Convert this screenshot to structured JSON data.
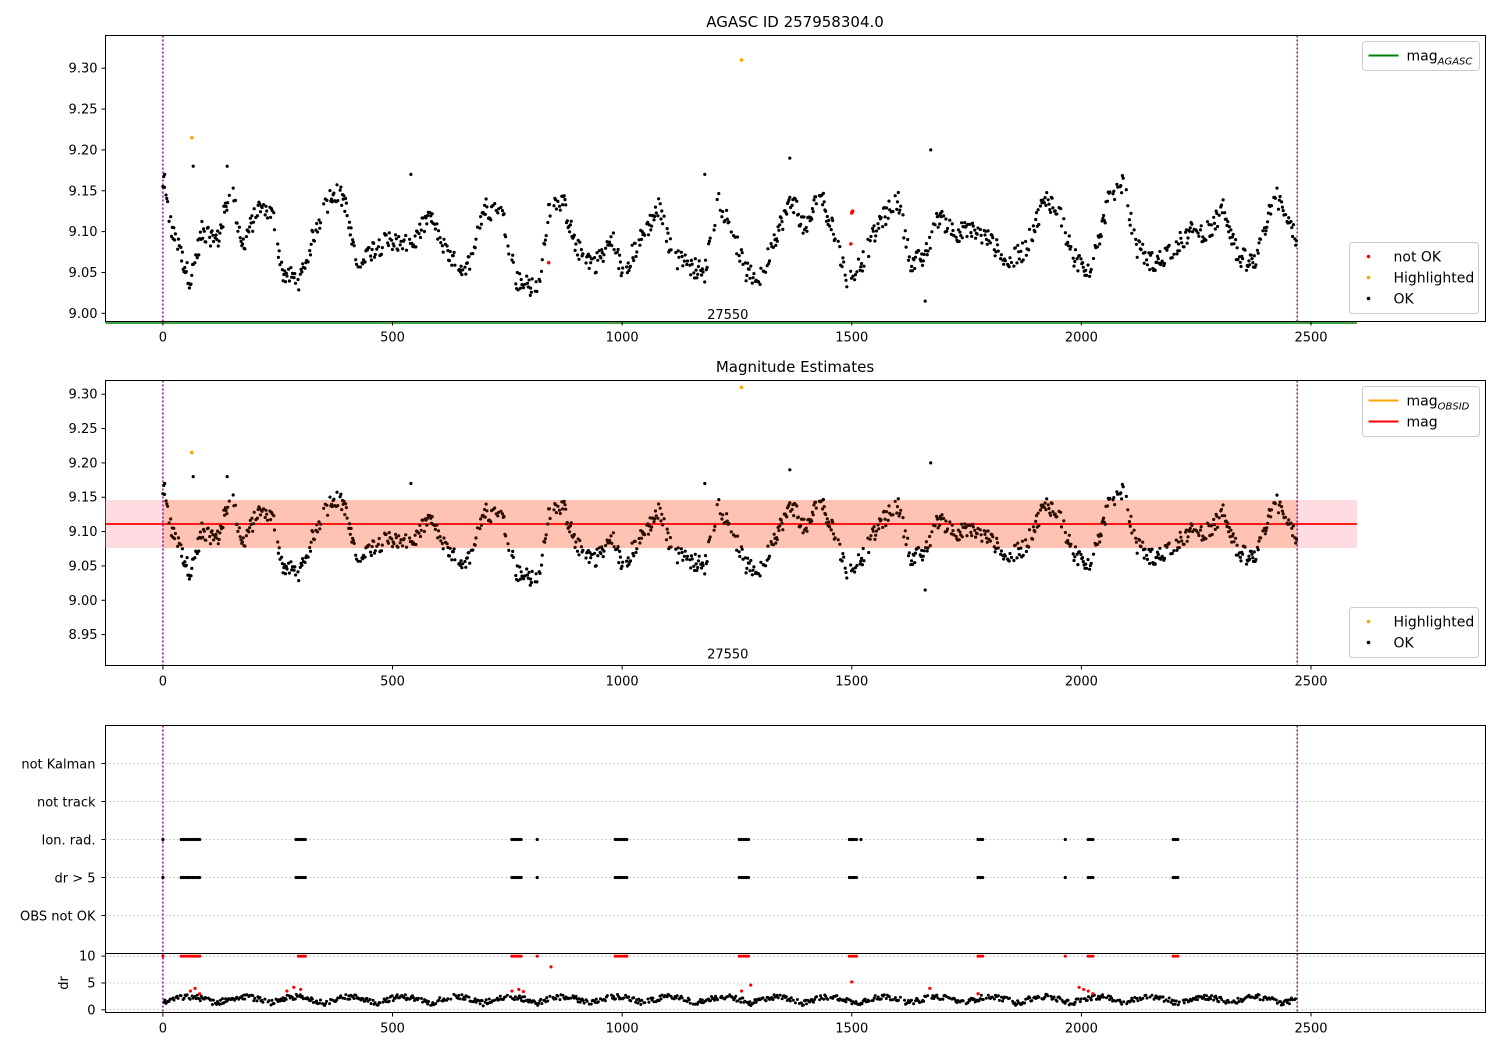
{
  "chart_data": [
    {
      "type": "scatter",
      "title": "AGASC ID 257958304.0",
      "xlim": [
        -125,
        2880
      ],
      "ylim": [
        8.99,
        9.34
      ],
      "xticks": [
        0,
        500,
        1000,
        1500,
        2000,
        2500
      ],
      "yticks": [
        9.0,
        9.05,
        9.1,
        9.15,
        9.2,
        9.25,
        9.3
      ],
      "tick_labels_y": [
        "9.00",
        "9.05",
        "9.10",
        "9.15",
        "9.20",
        "9.25",
        "9.30"
      ],
      "tick_labels_x": [
        "0",
        "500",
        "1000",
        "1500",
        "2000",
        "2500"
      ],
      "obsid_annotation": {
        "text": "27550",
        "x": 1230,
        "y": 8.993
      },
      "obsid_boundaries": [
        0,
        2470
      ],
      "reference_line": {
        "name": "mag_AGASC",
        "value": 8.99,
        "x_range": [
          -125,
          2600
        ],
        "color": "#008000"
      },
      "series": [
        {
          "name": "not OK",
          "color": "#ff0000",
          "points": [
            [
              1500,
              9.123
            ],
            [
              1502,
              9.125
            ],
            [
              1498,
              9.085
            ],
            [
              840,
              9.062
            ]
          ]
        },
        {
          "name": "Highlighted",
          "color": "#ffa500",
          "points": [
            [
              63,
              9.215
            ],
            [
              1260,
              9.31
            ]
          ]
        },
        {
          "name": "OK",
          "color": "#000000",
          "generated": true
        }
      ],
      "legend_upper": {
        "position": "upper-right",
        "entries": [
          {
            "name": "mag",
            "sub": "AGASC",
            "color": "#008000",
            "kind": "line"
          }
        ]
      },
      "legend_lower": {
        "position": "lower-right",
        "entries": [
          {
            "name": "not OK",
            "color": "#ff0000",
            "kind": "dot"
          },
          {
            "name": "Highlighted",
            "color": "#ffa500",
            "kind": "dot"
          },
          {
            "name": "OK",
            "color": "#000000",
            "kind": "dot"
          }
        ]
      }
    },
    {
      "type": "scatter",
      "title": "Magnitude Estimates",
      "xlim": [
        -125,
        2880
      ],
      "ylim": [
        8.905,
        9.32
      ],
      "xticks": [
        0,
        500,
        1000,
        1500,
        2000,
        2500
      ],
      "yticks": [
        8.95,
        9.0,
        9.05,
        9.1,
        9.15,
        9.2,
        9.25,
        9.3
      ],
      "tick_labels_y": [
        "8.95",
        "9.00",
        "9.05",
        "9.10",
        "9.15",
        "9.20",
        "9.25",
        "9.30"
      ],
      "tick_labels_x": [
        "0",
        "500",
        "1000",
        "1500",
        "2000",
        "2500"
      ],
      "obsid_annotation": {
        "text": "27550",
        "x": 1230,
        "y": 8.915
      },
      "obsid_boundaries": [
        0,
        2470
      ],
      "mag_line": {
        "name": "mag",
        "value": 9.111,
        "x_range": [
          -125,
          2600
        ],
        "color": "#ff0000"
      },
      "mag_band": {
        "low": 9.076,
        "high": 9.146,
        "x_range": [
          -125,
          2600
        ],
        "color": "#ffc0cb"
      },
      "obsid_band": {
        "low": 9.076,
        "high": 9.146,
        "x_range": [
          0,
          2470
        ],
        "color": "#ffa57a"
      },
      "series": [
        {
          "name": "Highlighted",
          "color": "#ffa500",
          "points": [
            [
              63,
              9.215
            ],
            [
              1260,
              9.31
            ]
          ]
        },
        {
          "name": "OK",
          "color": "#000000",
          "generated": true
        }
      ],
      "legend_upper": {
        "position": "upper-right",
        "entries": [
          {
            "name": "mag",
            "sub": "OBSID",
            "color": "#ffa500",
            "kind": "line"
          },
          {
            "name": "mag",
            "sub": "",
            "color": "#ff0000",
            "kind": "line"
          }
        ]
      },
      "legend_lower": {
        "position": "lower-right",
        "entries": [
          {
            "name": "Highlighted",
            "color": "#ffa500",
            "kind": "dot"
          },
          {
            "name": "OK",
            "color": "#000000",
            "kind": "dot"
          }
        ]
      }
    },
    {
      "type": "scatter",
      "title": "",
      "xlim": [
        -125,
        2880
      ],
      "categories": [
        "not Kalman",
        "not track",
        "Ion. rad.",
        "dr > 5",
        "OBS not OK"
      ],
      "obsid_boundaries": [
        0,
        2470
      ],
      "flag_events": {
        "Ion. rad.": [
          0,
          40,
          45,
          50,
          55,
          60,
          65,
          70,
          75,
          80,
          290,
          295,
          300,
          305,
          310,
          760,
          765,
          770,
          775,
          780,
          815,
          985,
          990,
          995,
          1000,
          1005,
          1010,
          1255,
          1260,
          1265,
          1270,
          1275,
          1495,
          1500,
          1505,
          1510,
          1520,
          1775,
          1780,
          1785,
          1965,
          2015,
          2020,
          2025,
          2200,
          2205,
          2210
        ],
        "dr > 5": [
          0,
          40,
          45,
          50,
          55,
          60,
          65,
          70,
          75,
          80,
          290,
          295,
          300,
          305,
          310,
          760,
          765,
          770,
          775,
          780,
          815,
          985,
          990,
          995,
          1000,
          1005,
          1010,
          1255,
          1260,
          1265,
          1270,
          1275,
          1495,
          1500,
          1505,
          1510,
          1775,
          1780,
          1785,
          1965,
          2015,
          2020,
          2025,
          2200,
          2205,
          2210
        ]
      }
    },
    {
      "type": "scatter",
      "title": "",
      "ylabel": "dr",
      "xlim": [
        -125,
        2880
      ],
      "ylim": [
        -0.5,
        10.5
      ],
      "yticks": [
        0,
        5,
        10
      ],
      "tick_labels_y": [
        "0",
        "5",
        "10"
      ],
      "xticks": [
        0,
        500,
        1000,
        1500,
        2000,
        2500
      ],
      "tick_labels_x": [
        "0",
        "500",
        "1000",
        "1500",
        "2000",
        "2500"
      ],
      "obsid_boundaries": [
        0,
        2470
      ],
      "series": [
        {
          "name": "dr > 5",
          "color": "#ff0000",
          "clipped_at": 10,
          "points_x": [
            0,
            40,
            45,
            50,
            55,
            60,
            65,
            70,
            75,
            80,
            295,
            300,
            305,
            310,
            760,
            765,
            770,
            775,
            780,
            815,
            985,
            990,
            995,
            1000,
            1005,
            1010,
            1255,
            1260,
            1265,
            1270,
            1275,
            1495,
            1500,
            1505,
            1510,
            1775,
            1780,
            1785,
            1965,
            2015,
            2020,
            2025,
            2200,
            2205,
            2210
          ]
        },
        {
          "name": "dr",
          "color": "#000000",
          "generated": true
        }
      ]
    }
  ]
}
